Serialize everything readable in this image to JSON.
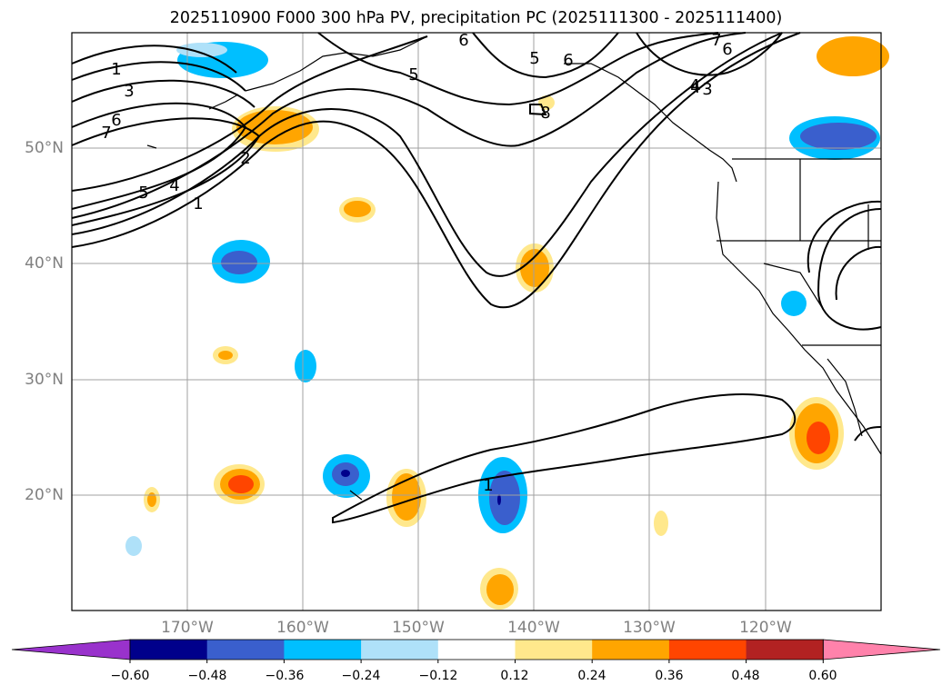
{
  "title": "2025110900 F000 300 hPa PV, precipitation PC (2025111300 - 2025111400)",
  "map": {
    "projection": "plate-carree",
    "lon_range": [
      -180,
      -110
    ],
    "lat_range": [
      10,
      60
    ],
    "lat_labels": [
      "50°N",
      "40°N",
      "30°N",
      "20°N"
    ],
    "lon_labels": [
      "170°W",
      "160°W",
      "150°W",
      "140°W",
      "130°W",
      "120°W"
    ],
    "contour_labels": [
      "1",
      "3",
      "6",
      "7",
      "6",
      "5",
      "4",
      "1",
      "2",
      "6",
      "5",
      "5",
      "8",
      "4",
      "7",
      "6",
      "4",
      "3",
      "1"
    ],
    "field": "300 hPa potential vorticity (black contours, PVU)",
    "shaded_field": "precipitation PC (filled)"
  },
  "colorbar": {
    "extend": "both",
    "ticks": [
      "−0.60",
      "−0.48",
      "−0.36",
      "−0.24",
      "−0.12",
      "0.12",
      "0.24",
      "0.36",
      "0.48",
      "0.60"
    ],
    "colors": {
      "under": "#9932cc",
      "c1": "#00008b",
      "c2": "#3a5fcd",
      "c3": "#00bfff",
      "c4": "#afe1f9",
      "c5": "#ffffff",
      "c6": "#ffe88c",
      "c7": "#ffa500",
      "c8": "#ff4500",
      "c9": "#b22222",
      "over": "#ff82ab"
    }
  }
}
